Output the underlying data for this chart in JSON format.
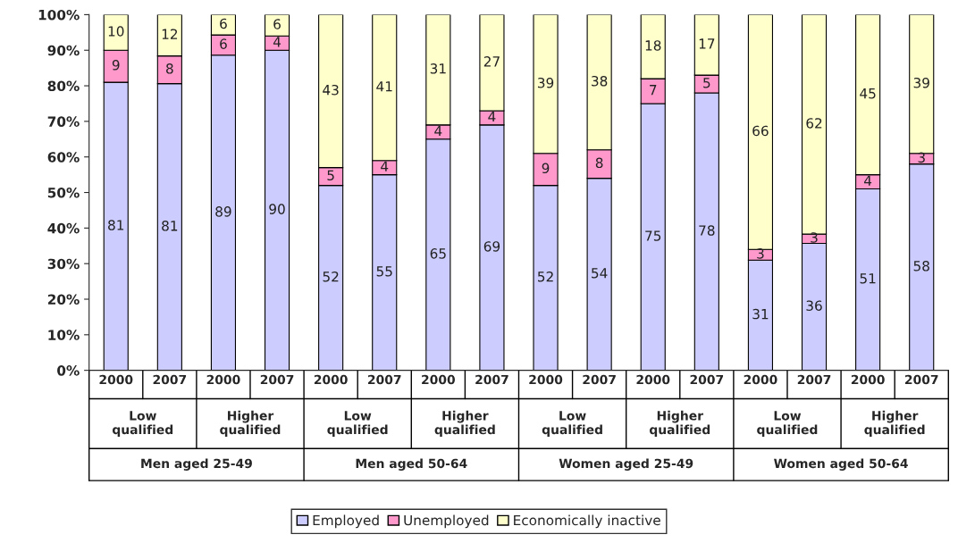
{
  "chart_data": {
    "type": "bar",
    "stacked": true,
    "legend": "bottom",
    "grid": false,
    "categories": [
      "2000",
      "2007",
      "2000",
      "2007",
      "2000",
      "2007",
      "2000",
      "2007",
      "2000",
      "2007",
      "2000",
      "2007",
      "2000",
      "2007",
      "2000",
      "2007"
    ],
    "series": [
      {
        "name": "Employed",
        "color": "#ccccff",
        "values": [
          81,
          80.6,
          88.6,
          90,
          52,
          55,
          65,
          69,
          52,
          54,
          75,
          78,
          31,
          35.7,
          51,
          58
        ],
        "value_labels": [
          "81",
          "81",
          "89",
          "90",
          "52",
          "55",
          "65",
          "69",
          "52",
          "54",
          "75",
          "78",
          "31",
          "36",
          "51",
          "58"
        ]
      },
      {
        "name": "Unemployed",
        "color": "#ff99cc",
        "values": [
          9,
          7.8,
          5.7,
          4,
          5,
          4,
          4,
          4,
          9,
          8,
          7,
          5,
          3,
          2.6,
          4,
          3
        ],
        "value_labels": [
          "9",
          "8",
          "6",
          "4",
          "5",
          "4",
          "4",
          "4",
          "9",
          "8",
          "7",
          "5",
          "3",
          "3",
          "4",
          "3"
        ]
      },
      {
        "name": "Economically inactive",
        "color": "#ffffcc",
        "values": [
          10,
          11.6,
          5.7,
          6,
          43,
          41,
          31,
          27,
          39,
          38,
          18,
          17,
          66,
          61.7,
          45,
          39
        ],
        "value_labels": [
          "10",
          "12",
          "6",
          "6",
          "43",
          "41",
          "31",
          "27",
          "39",
          "38",
          "18",
          "17",
          "66",
          "62",
          "45",
          "39"
        ]
      }
    ],
    "ylim": [
      0,
      100
    ],
    "yticks": [
      {
        "value": 0,
        "label": "0%"
      },
      {
        "value": 10,
        "label": "10%"
      },
      {
        "value": 20,
        "label": "20%"
      },
      {
        "value": 30,
        "label": "30%"
      },
      {
        "value": 40,
        "label": "40%"
      },
      {
        "value": 50,
        "label": "50%"
      },
      {
        "value": 60,
        "label": "60%"
      },
      {
        "value": 70,
        "label": "70%"
      },
      {
        "value": 80,
        "label": "80%"
      },
      {
        "value": 90,
        "label": "90%"
      },
      {
        "value": 100,
        "label": "100%"
      }
    ],
    "annotations": [
      "Low\nqualified",
      "Higher\nqualified",
      "Low\nqualified",
      "Higher\nqualified",
      "Low\nqualified",
      "Higher\nqualified",
      "Low\nqualified",
      "Higher\nqualified",
      "Men aged 25-49",
      "Men aged 50-64",
      "Women aged 25-49",
      "Women aged 50-64"
    ]
  }
}
